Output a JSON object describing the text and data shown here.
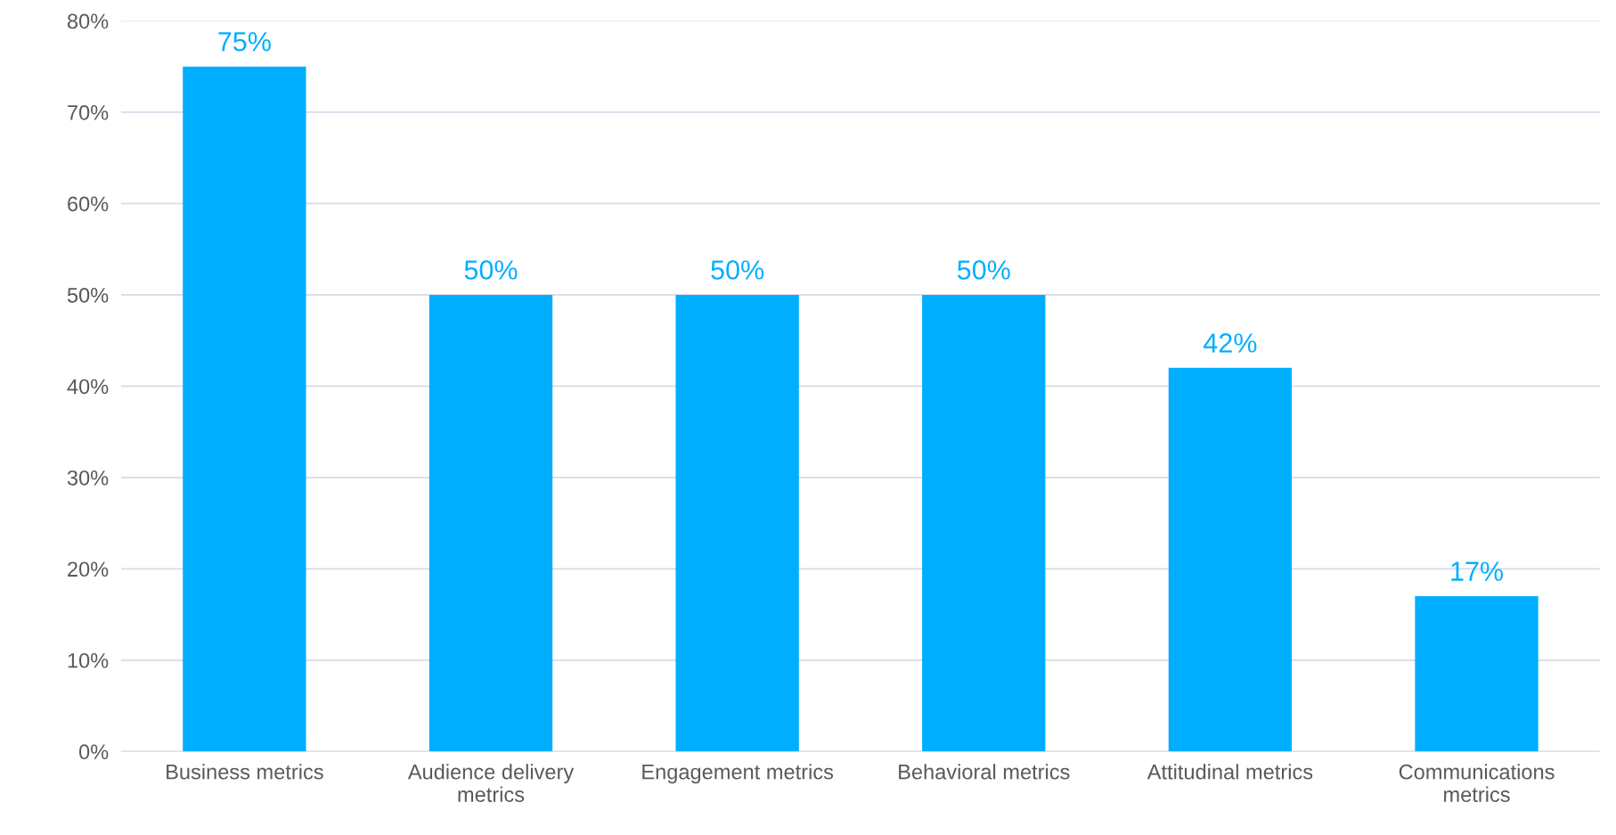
{
  "chart_data": {
    "type": "bar",
    "categories": [
      "Business metrics",
      "Audience delivery metrics",
      "Engagement metrics",
      "Behavioral metrics",
      "Attitudinal metrics",
      "Communications metrics"
    ],
    "values": [
      75,
      50,
      50,
      50,
      42,
      17
    ],
    "value_labels": [
      "75%",
      "50%",
      "50%",
      "50%",
      "42%",
      "17%"
    ],
    "color": "#00aeff",
    "ylim": [
      0,
      80
    ],
    "yticks": [
      {
        "value": 0,
        "label": "0%"
      },
      {
        "value": 10,
        "label": "10%"
      },
      {
        "value": 20,
        "label": "20%"
      },
      {
        "value": 30,
        "label": "30%"
      },
      {
        "value": 40,
        "label": "40%"
      },
      {
        "value": 50,
        "label": "50%"
      },
      {
        "value": 60,
        "label": "60%"
      },
      {
        "value": 70,
        "label": "70%"
      },
      {
        "value": 80,
        "label": "80%"
      }
    ],
    "grid": "y",
    "legend": false
  }
}
